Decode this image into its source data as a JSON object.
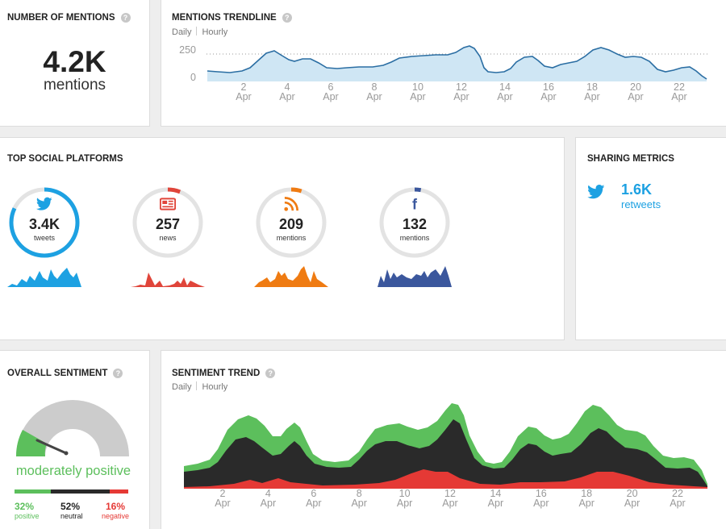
{
  "mentions": {
    "title": "NUMBER OF MENTIONS",
    "value": "4.2K",
    "unit": "mentions"
  },
  "trendline": {
    "title": "MENTIONS TRENDLINE",
    "tabs": [
      "Daily",
      "Hourly"
    ],
    "y_ticks": [
      "250",
      "0"
    ],
    "x_days": [
      "2",
      "4",
      "6",
      "8",
      "10",
      "12",
      "14",
      "16",
      "18",
      "20",
      "22"
    ],
    "x_month": "Apr",
    "fill_color": "#cfe6f4",
    "line_color": "#2b6ea3"
  },
  "platforms": {
    "title": "TOP SOCIAL PLATFORMS",
    "items": [
      {
        "icon": "twitter-icon",
        "count": "3.4K",
        "label": "tweets",
        "color": "#1da1e2",
        "fraction": 0.82
      },
      {
        "icon": "news-icon",
        "count": "257",
        "label": "news",
        "color": "#e0453a",
        "fraction": 0.06
      },
      {
        "icon": "rss-icon",
        "count": "209",
        "label": "mentions",
        "color": "#ef7b12",
        "fraction": 0.05
      },
      {
        "icon": "facebook-icon",
        "count": "132",
        "label": "mentions",
        "color": "#3b579d",
        "fraction": 0.03
      }
    ]
  },
  "sharing": {
    "title": "SHARING METRICS",
    "value": "1.6K",
    "label": "retweets",
    "color": "#1da1e2"
  },
  "sentiment": {
    "title": "OVERALL SENTIMENT",
    "summary": "moderately positive",
    "positive_pct": "32%",
    "neutral_pct": "52%",
    "negative_pct": "16%",
    "positive_label": "positive",
    "neutral_label": "neutral",
    "negative_label": "negative",
    "positive_fraction": 0.32,
    "neutral_fraction": 0.52,
    "negative_fraction": 0.16,
    "positive_color": "#5cbf5c",
    "neutral_color": "#2a2a2a",
    "negative_color": "#e53935"
  },
  "sentiment_trend": {
    "title": "SENTIMENT TREND",
    "tabs": [
      "Daily",
      "Hourly"
    ],
    "x_days": [
      "2",
      "4",
      "6",
      "8",
      "10",
      "12",
      "14",
      "16",
      "18",
      "20",
      "22"
    ],
    "x_month": "Apr"
  }
}
